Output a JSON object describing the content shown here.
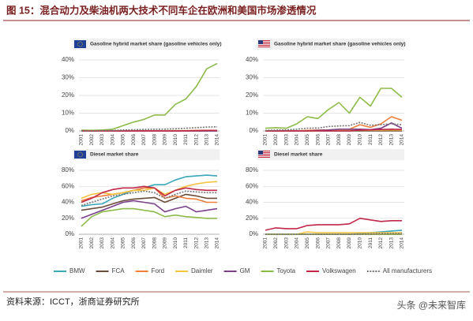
{
  "title": "图 15：混合动力及柴油机两大技术不同车企在欧洲和美国市场渗透情况",
  "source": "资料来源：ICCT，浙商证券研究所",
  "watermark": "头条 @未来智库",
  "chart_data": [
    {
      "type": "line",
      "title": "Gasoline hybrid market share (gasoline vehicles only)",
      "grid": true,
      "categories": [
        "2001",
        "2002",
        "2003",
        "2004",
        "2005",
        "2006",
        "2007",
        "2008",
        "2009",
        "2010",
        "2011",
        "2012",
        "2013",
        "2014"
      ],
      "ylim": [
        0,
        40
      ],
      "yticks": [
        {
          "value": 0,
          "label": "0%"
        },
        {
          "value": 10,
          "label": "10%"
        },
        {
          "value": 20,
          "label": "20%"
        },
        {
          "value": 30,
          "label": "30%"
        },
        {
          "value": 40,
          "label": "40%"
        }
      ],
      "series": [
        {
          "name": "BMW",
          "color": "#3aa6b9",
          "values": [
            0,
            0,
            0,
            0,
            0,
            0,
            0,
            0,
            0,
            0,
            0,
            0,
            0.1,
            0.1
          ]
        },
        {
          "name": "FCA",
          "color": "#6b4c3b",
          "values": [
            0,
            0,
            0,
            0,
            0,
            0,
            0,
            0,
            0,
            0,
            0,
            0,
            0,
            0
          ]
        },
        {
          "name": "Ford",
          "color": "#f07d3a",
          "values": [
            0,
            0,
            0,
            0,
            0,
            0,
            0,
            0,
            0,
            0,
            0,
            0,
            0.1,
            0.1
          ]
        },
        {
          "name": "Daimler",
          "color": "#f5c242",
          "values": [
            0,
            0,
            0,
            0,
            0,
            0,
            0,
            0,
            0.1,
            0.2,
            0.2,
            0.3,
            0.3,
            0.3
          ]
        },
        {
          "name": "GM",
          "color": "#7b3f8c",
          "values": [
            0,
            0,
            0,
            0,
            0,
            0,
            0,
            0,
            0,
            0,
            0,
            0,
            0,
            0
          ]
        },
        {
          "name": "Toyota",
          "color": "#8dbb4a",
          "values": [
            0.5,
            0.3,
            0.5,
            1,
            3,
            5,
            6.5,
            9,
            9,
            15,
            18,
            25,
            35,
            38
          ]
        },
        {
          "name": "Volkswagen",
          "color": "#c0284a",
          "values": [
            0,
            0,
            0,
            0,
            0,
            0,
            0,
            0,
            0,
            0,
            0.1,
            0.2,
            0.3,
            0.3
          ]
        },
        {
          "name": "All manufacturers",
          "color": "#777777",
          "dashed": true,
          "values": [
            0,
            0,
            0.2,
            0.3,
            0.5,
            0.7,
            0.8,
            1,
            1,
            1.2,
            1.5,
            1.8,
            2.2,
            2.3
          ]
        }
      ]
    },
    {
      "type": "line",
      "title": "Gasoline hybrid market share (gasoline vehicles only)",
      "grid": true,
      "categories": [
        "2001",
        "2002",
        "2003",
        "2004",
        "2005",
        "2006",
        "2007",
        "2008",
        "2009",
        "2010",
        "2011",
        "2012",
        "2013",
        "2014"
      ],
      "ylim": [
        0,
        40
      ],
      "yticks": [
        {
          "value": 0,
          "label": "0%"
        },
        {
          "value": 10,
          "label": "10%"
        },
        {
          "value": 20,
          "label": "20%"
        },
        {
          "value": 30,
          "label": "30%"
        },
        {
          "value": 40,
          "label": "40%"
        }
      ],
      "series": [
        {
          "name": "BMW",
          "color": "#3aa6b9",
          "values": [
            0,
            0,
            0,
            0,
            0,
            0,
            0,
            0,
            0,
            0.3,
            0.5,
            0.5,
            0.8,
            0.5
          ]
        },
        {
          "name": "FCA",
          "color": "#6b4c3b",
          "values": [
            0,
            0,
            0,
            0,
            0,
            0,
            0,
            0,
            0,
            0,
            0,
            0,
            0,
            0
          ]
        },
        {
          "name": "Ford",
          "color": "#f07d3a",
          "values": [
            0,
            0,
            0,
            0,
            0.3,
            0.5,
            0.6,
            0.8,
            1,
            3.5,
            2,
            4,
            8,
            6
          ]
        },
        {
          "name": "Daimler",
          "color": "#f5c242",
          "values": [
            0,
            0,
            0,
            0,
            0,
            0,
            0.2,
            0.3,
            0.5,
            0.5,
            0.4,
            0.5,
            0.6,
            0.5
          ]
        },
        {
          "name": "GM",
          "color": "#7b3f8c",
          "values": [
            0,
            0,
            0,
            0,
            0,
            0.3,
            0.5,
            1,
            1,
            1,
            0.7,
            1.5,
            4.5,
            1.5
          ]
        },
        {
          "name": "Toyota",
          "color": "#8dbb4a",
          "values": [
            1.5,
            1.8,
            1.5,
            4,
            8,
            7,
            12,
            16,
            10,
            19,
            14,
            24,
            24,
            19
          ]
        },
        {
          "name": "Volkswagen",
          "color": "#c0284a",
          "values": [
            0,
            0,
            0,
            0,
            0,
            0,
            0,
            0,
            0,
            0.5,
            0.6,
            0.8,
            1,
            0.8
          ]
        },
        {
          "name": "All manufacturers",
          "color": "#777777",
          "dashed": true,
          "values": [
            0.3,
            0.5,
            0.6,
            1,
            1.5,
            1.6,
            2.5,
            2.8,
            3,
            4.8,
            3.2,
            3.5,
            4,
            3.5
          ]
        }
      ]
    },
    {
      "type": "line",
      "title": "Diesel market share",
      "grid": true,
      "categories": [
        "2001",
        "2002",
        "2003",
        "2004",
        "2005",
        "2006",
        "2007",
        "2008",
        "2009",
        "2010",
        "2011",
        "2012",
        "2013",
        "2014"
      ],
      "ylim": [
        0,
        80
      ],
      "yticks": [
        {
          "value": 0,
          "label": "0%"
        },
        {
          "value": 20,
          "label": "20%"
        },
        {
          "value": 40,
          "label": "40%"
        },
        {
          "value": 60,
          "label": "60%"
        },
        {
          "value": 80,
          "label": "80%"
        }
      ],
      "series": [
        {
          "name": "BMW",
          "color": "#3aa6b9",
          "values": [
            35,
            37,
            38,
            45,
            50,
            55,
            58,
            62,
            62,
            68,
            72,
            73,
            74,
            73
          ]
        },
        {
          "name": "FCA",
          "color": "#6b4c3b",
          "values": [
            30,
            32,
            34,
            38,
            42,
            44,
            45,
            46,
            40,
            45,
            50,
            48,
            45,
            45
          ]
        },
        {
          "name": "Ford",
          "color": "#f07d3a",
          "values": [
            42,
            46,
            48,
            50,
            52,
            55,
            58,
            58,
            45,
            48,
            45,
            44,
            40,
            40
          ]
        },
        {
          "name": "Daimler",
          "color": "#f5c242",
          "values": [
            45,
            50,
            52,
            50,
            52,
            55,
            55,
            58,
            50,
            55,
            60,
            63,
            65,
            66
          ]
        },
        {
          "name": "GM",
          "color": "#7b3f8c",
          "values": [
            20,
            25,
            30,
            35,
            40,
            42,
            40,
            38,
            28,
            32,
            35,
            28,
            30,
            32
          ]
        },
        {
          "name": "Toyota",
          "color": "#8dbb4a",
          "values": [
            10,
            22,
            28,
            30,
            32,
            32,
            30,
            28,
            22,
            24,
            22,
            21,
            20,
            20
          ]
        },
        {
          "name": "Volkswagen",
          "color": "#c0284a",
          "values": [
            40,
            45,
            52,
            56,
            58,
            58,
            60,
            58,
            48,
            55,
            58,
            56,
            55,
            55
          ]
        },
        {
          "name": "All manufacturers",
          "color": "#777777",
          "dashed": true,
          "values": [
            36,
            40,
            44,
            48,
            50,
            52,
            54,
            52,
            45,
            50,
            54,
            53,
            52,
            52
          ]
        }
      ]
    },
    {
      "type": "line",
      "title": "Diesel market share",
      "grid": true,
      "categories": [
        "2001",
        "2002",
        "2003",
        "2004",
        "2005",
        "2006",
        "2007",
        "2008",
        "2009",
        "2010",
        "2011",
        "2012",
        "2013",
        "2014"
      ],
      "ylim": [
        0,
        80
      ],
      "yticks": [
        {
          "value": 0,
          "label": "0%"
        },
        {
          "value": 20,
          "label": "20%"
        },
        {
          "value": 40,
          "label": "40%"
        },
        {
          "value": 60,
          "label": "60%"
        },
        {
          "value": 80,
          "label": "80%"
        }
      ],
      "series": [
        {
          "name": "BMW",
          "color": "#3aa6b9",
          "values": [
            0,
            0,
            0,
            0,
            0,
            0,
            0,
            0,
            0,
            1,
            2,
            3,
            4,
            5
          ]
        },
        {
          "name": "FCA",
          "color": "#6b4c3b",
          "values": [
            0,
            0,
            0,
            0,
            0,
            0,
            0,
            0,
            0,
            0,
            0,
            0,
            0,
            0
          ]
        },
        {
          "name": "Ford",
          "color": "#f07d3a",
          "values": [
            0,
            0,
            0,
            0,
            0,
            0,
            0,
            0,
            0,
            0,
            0,
            0,
            0,
            0
          ]
        },
        {
          "name": "Daimler",
          "color": "#f5c242",
          "values": [
            0,
            0,
            0,
            0,
            3,
            2,
            2,
            2,
            2,
            2,
            2,
            2,
            2,
            2
          ]
        },
        {
          "name": "GM",
          "color": "#7b3f8c",
          "values": [
            0,
            0,
            0,
            0,
            0,
            0,
            0,
            0,
            0,
            0,
            0,
            0,
            0,
            0
          ]
        },
        {
          "name": "Toyota",
          "color": "#8dbb4a",
          "values": [
            0,
            0,
            0,
            0,
            0,
            0,
            0,
            0,
            0,
            0,
            0,
            0,
            0,
            0
          ]
        },
        {
          "name": "Volkswagen",
          "color": "#c0284a",
          "values": [
            5,
            8,
            7,
            7,
            11,
            12,
            12,
            12,
            13,
            20,
            18,
            16,
            17,
            17
          ]
        },
        {
          "name": "All manufacturers",
          "color": "#777777",
          "dashed": true,
          "values": [
            0,
            0,
            0,
            0,
            0,
            0,
            0,
            0,
            0,
            0.3,
            0.5,
            0.8,
            1,
            1
          ]
        }
      ]
    }
  ]
}
